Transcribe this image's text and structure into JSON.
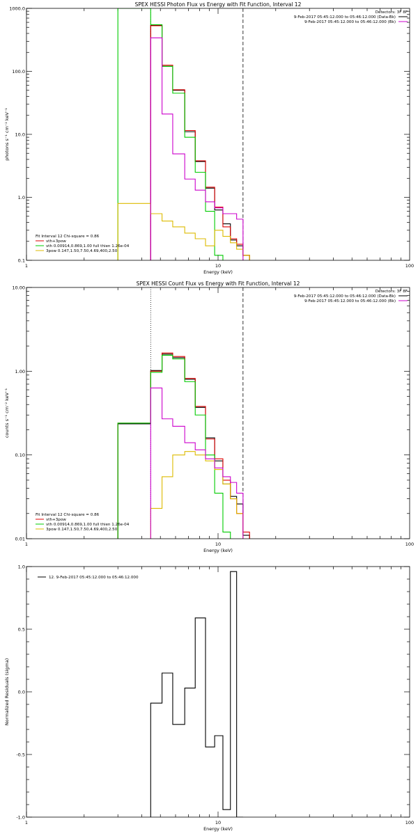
{
  "chart_data": [
    {
      "type": "line",
      "title": "SPEX HESSI Photon Flux vs Energy with Fit Function, Interval 12",
      "xlabel": "Energy (keV)",
      "ylabel": "photons s⁻¹ cm⁻² keV⁻¹",
      "xscale": "log",
      "yscale": "log",
      "xlim": [
        1,
        100
      ],
      "ylim": [
        0.1,
        1000
      ],
      "xticks": [
        {
          "v": 1,
          "label": "1"
        },
        {
          "v": 10,
          "label": "10"
        },
        {
          "v": 100,
          "label": "100"
        }
      ],
      "yticks": [
        {
          "v": 0.1,
          "label": "0.1"
        },
        {
          "v": 1,
          "label": "1.0"
        },
        {
          "v": 10,
          "label": "10.0"
        },
        {
          "v": 100,
          "label": "100.0"
        },
        {
          "v": 1000,
          "label": "1000.0"
        }
      ],
      "vlines": [
        {
          "x": 4.45,
          "style": "dotted"
        },
        {
          "x": 13.5,
          "style": "dashed"
        }
      ],
      "legend_tr": {
        "title": "Detectors: 3F 8F",
        "entries": [
          {
            "text": "9-Feb-2017 05:45:12.000 to 05:46:12.000 (Data-Bk)",
            "color": "#000000"
          },
          {
            "text": "9-Feb-2017 05:45:12.000 to 05:46:12.000 (Bk)",
            "color": "#cc00cc"
          }
        ]
      },
      "legend_bl": {
        "title": "Fit Interval 12   Chi-square = 0.86",
        "entries": [
          {
            "text": "vth+3pow",
            "color": "#dd0000"
          },
          {
            "text": "vth 0.00914,0.869,1.00  full thien 1.26e-04",
            "color": "#00cc00"
          },
          {
            "text": "3pow 0.147,1.50,7.50,4.69,400,2.50",
            "color": "#ddbb00"
          }
        ]
      },
      "edges": [
        3.0,
        4.45,
        5.1,
        5.8,
        6.7,
        7.6,
        8.6,
        9.6,
        10.6,
        11.6,
        12.5,
        13.5,
        14.6
      ],
      "series": [
        {
          "name": "Data-Bk",
          "color": "#000000",
          "start": 1,
          "values": [
            540,
            120,
            50,
            11,
            3.7,
            1.4,
            0.63,
            0.38,
            0.21,
            0.17,
            0.12
          ]
        },
        {
          "name": "vth+3pow",
          "color": "#dd0000",
          "start": 1,
          "values": [
            530,
            125,
            51,
            11.5,
            3.8,
            1.45,
            0.7,
            0.34,
            0.22,
            0.18,
            0.12
          ]
        },
        {
          "name": "vth",
          "color": "#00cc00",
          "start": 0,
          "values": [
            1000,
            550,
            120,
            45,
            9,
            2.5,
            0.6,
            0.12
          ]
        },
        {
          "name": "3pow",
          "color": "#ddbb00",
          "start": 0,
          "values": [
            0.8,
            0.55,
            0.42,
            0.34,
            0.27,
            0.22,
            0.17,
            0.3,
            0.24,
            0.19,
            0.15,
            0.12
          ]
        },
        {
          "name": "Bk",
          "color": "#cc00cc",
          "start": 1,
          "values": [
            340,
            21,
            4.9,
            1.95,
            1.3,
            0.85,
            0.68,
            0.55,
            0.55,
            0.45
          ]
        }
      ]
    },
    {
      "type": "line",
      "title": "SPEX HESSI Count Flux vs Energy with Fit Function, Interval 12",
      "xlabel": "Energy (keV)",
      "ylabel": "counts s⁻¹ cm⁻² keV⁻¹",
      "xscale": "log",
      "yscale": "log",
      "xlim": [
        1,
        100
      ],
      "ylim": [
        0.01,
        10
      ],
      "xticks": [
        {
          "v": 1,
          "label": "1"
        },
        {
          "v": 10,
          "label": "10"
        },
        {
          "v": 100,
          "label": "100"
        }
      ],
      "yticks": [
        {
          "v": 0.01,
          "label": "0.01"
        },
        {
          "v": 0.1,
          "label": "0.10"
        },
        {
          "v": 1,
          "label": "1.00"
        },
        {
          "v": 10,
          "label": "10.00"
        }
      ],
      "vlines": [
        {
          "x": 4.45,
          "style": "dotted"
        },
        {
          "x": 13.5,
          "style": "dashed"
        }
      ],
      "legend_tr": {
        "title": "Detectors: 3F 8F",
        "entries": [
          {
            "text": "9-Feb-2017 05:45:12.000 to 05:46:12.000 (Data-Bk)",
            "color": "#000000"
          },
          {
            "text": "9-Feb-2017 05:45:12.000 to 05:46:12.000 (Bk)",
            "color": "#cc00cc"
          }
        ]
      },
      "legend_bl": {
        "title": "Fit Interval 12   Chi-square = 0.86",
        "entries": [
          {
            "text": "vth+3pow",
            "color": "#dd0000"
          },
          {
            "text": "vth 0.00914,0.869,1.00  full thien 1.26e-04",
            "color": "#00cc00"
          },
          {
            "text": "3pow 0.147,1.50,7.50,4.69,400,2.50",
            "color": "#ddbb00"
          }
        ]
      },
      "edges": [
        3.0,
        4.45,
        5.1,
        5.8,
        6.7,
        7.6,
        8.6,
        9.6,
        10.6,
        11.6,
        12.5,
        13.5,
        14.6
      ],
      "series": [
        {
          "name": "Data-Bk",
          "color": "#000000",
          "start": 0,
          "values": [
            0.235,
            1.02,
            1.6,
            1.45,
            0.8,
            0.37,
            0.16,
            0.085,
            0.045,
            0.032,
            0.026,
            0.011
          ]
        },
        {
          "name": "vth+3pow",
          "color": "#dd0000",
          "start": 0,
          "values": [
            0.24,
            1.0,
            1.65,
            1.5,
            0.82,
            0.38,
            0.155,
            0.09,
            0.05,
            0.03,
            0.02,
            0.012
          ]
        },
        {
          "name": "vth",
          "color": "#00cc00",
          "start": 0,
          "values": [
            0.24,
            0.97,
            1.55,
            1.4,
            0.75,
            0.3,
            0.1,
            0.035,
            0.012
          ]
        },
        {
          "name": "3pow",
          "color": "#ddbb00",
          "start": 1,
          "values": [
            0.023,
            0.055,
            0.1,
            0.11,
            0.1,
            0.085,
            0.067,
            0.045,
            0.03,
            0.02
          ]
        },
        {
          "name": "Bk",
          "color": "#cc00cc",
          "start": 1,
          "values": [
            0.63,
            0.27,
            0.22,
            0.14,
            0.115,
            0.09,
            0.07,
            0.055,
            0.047,
            0.035
          ]
        }
      ]
    },
    {
      "type": "line",
      "title": "",
      "xlabel": "Energy (keV)",
      "ylabel": "Normalized Residuals (sigma)",
      "xscale": "log",
      "yscale": "linear",
      "xlim": [
        1,
        100
      ],
      "ylim": [
        -1,
        1
      ],
      "xticks": [
        {
          "v": 1,
          "label": "1"
        },
        {
          "v": 10,
          "label": "10"
        },
        {
          "v": 100,
          "label": "100"
        }
      ],
      "yticks": [
        {
          "v": -1,
          "label": "-1.0"
        },
        {
          "v": -0.5,
          "label": "-0.5"
        },
        {
          "v": 0,
          "label": "0.0"
        },
        {
          "v": 0.5,
          "label": "0.5"
        },
        {
          "v": 1,
          "label": "1.0"
        }
      ],
      "legend_tl": {
        "entries": [
          {
            "text": "12.  9-Feb-2017 05:45:12.000 to 05:46:12.000",
            "color": "#000000"
          }
        ]
      },
      "edges": [
        4.45,
        5.1,
        5.8,
        6.7,
        7.6,
        8.6,
        9.6,
        10.6,
        11.6,
        12.5,
        13.5
      ],
      "series": [
        {
          "name": "residuals",
          "color": "#000000",
          "start": 0,
          "values": [
            -0.09,
            0.15,
            -0.26,
            0.03,
            0.59,
            -0.44,
            -0.35,
            -0.94,
            0.96,
            -1.0
          ]
        }
      ]
    }
  ]
}
